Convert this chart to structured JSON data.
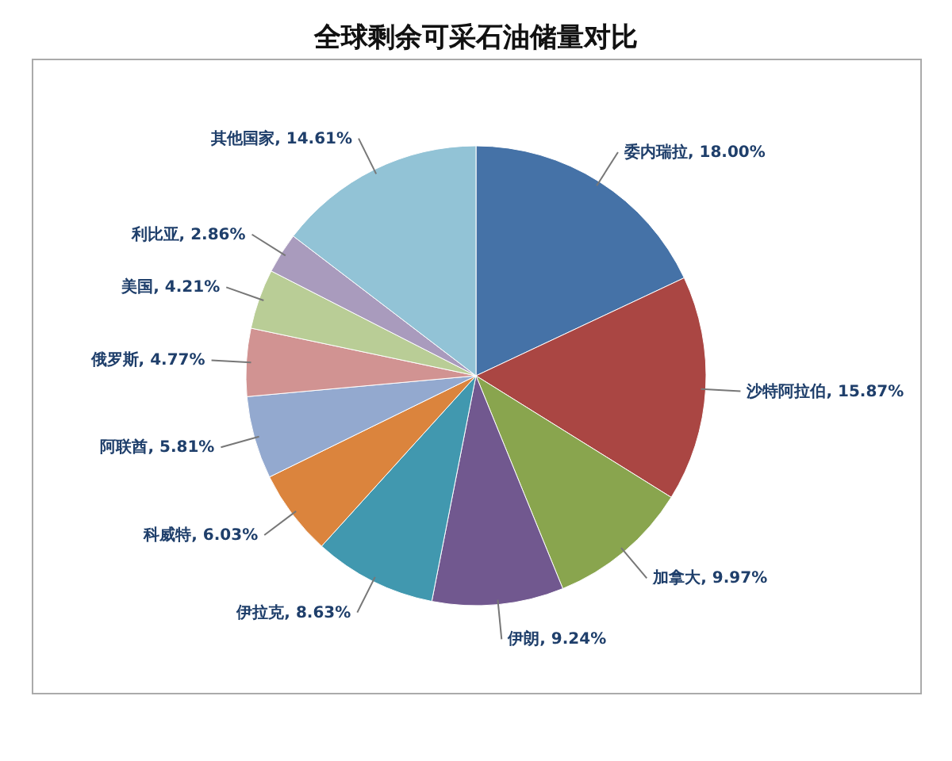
{
  "chart_data": {
    "type": "pie",
    "title": "全球剩余可采石油储量对比",
    "categories": [
      "委内瑞拉",
      "沙特阿拉伯",
      "加拿大",
      "伊朗",
      "伊拉克",
      "科威特",
      "阿联酋",
      "俄罗斯",
      "美国",
      "利比亚",
      "其他国家"
    ],
    "values": [
      18.0,
      15.87,
      9.97,
      9.24,
      8.63,
      6.03,
      5.81,
      4.77,
      4.21,
      2.86,
      14.61
    ],
    "value_labels": [
      "18.00%",
      "15.87%",
      "9.97%",
      "9.24%",
      "8.63%",
      "6.03%",
      "5.81%",
      "4.77%",
      "4.21%",
      "2.86%",
      "14.61%"
    ],
    "colors": [
      "#4572a7",
      "#aa4643",
      "#89a54e",
      "#71588f",
      "#4198af",
      "#db843d",
      "#93a9cf",
      "#d19392",
      "#b9cd96",
      "#a99bbd",
      "#92c3d6"
    ]
  }
}
